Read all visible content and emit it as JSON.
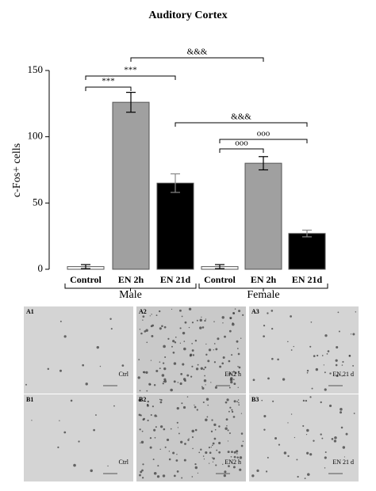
{
  "chart_data": {
    "type": "bar",
    "title": "Auditory Cortex",
    "y_label": "c-Fos+ cells",
    "categories": [
      "Control",
      "EN 2h",
      "EN 21d",
      "Control",
      "EN 2h",
      "EN 21d"
    ],
    "values": [
      2,
      126,
      65,
      2,
      80,
      27
    ],
    "errors": [
      1.5,
      7.5,
      7,
      1.5,
      5,
      2.5
    ],
    "colors": [
      "#ffffff",
      "#a0a0a0",
      "#000000",
      "#ffffff",
      "#a0a0a0",
      "#000000"
    ],
    "groups": [
      {
        "name": "Male",
        "from": 0,
        "to": 2
      },
      {
        "name": "Female",
        "from": 3,
        "to": 5
      }
    ],
    "annotations": [
      {
        "text": "***",
        "from": 0,
        "to": 1
      },
      {
        "text": "***",
        "from": 0,
        "to": 2
      },
      {
        "text": "&&&",
        "from": 1,
        "to": 4
      },
      {
        "text": "&&&",
        "from": 2,
        "to": 5
      },
      {
        "text": "ooo",
        "from": 3,
        "to": 4
      },
      {
        "text": "ooo",
        "from": 3,
        "to": 5
      }
    ],
    "ylim": [
      0,
      150
    ],
    "yticks": [
      0,
      50,
      100,
      150
    ]
  },
  "figure_panels": [
    {
      "label": "A1",
      "caption": "Ctrl"
    },
    {
      "label": "A2",
      "caption": "EN2 h"
    },
    {
      "label": "A3",
      "caption": "EN 21 d"
    },
    {
      "label": "B1",
      "caption": "Ctrl"
    },
    {
      "label": "B2",
      "caption": "EN2 h"
    },
    {
      "label": "B3",
      "caption": "EN 21 d"
    }
  ]
}
